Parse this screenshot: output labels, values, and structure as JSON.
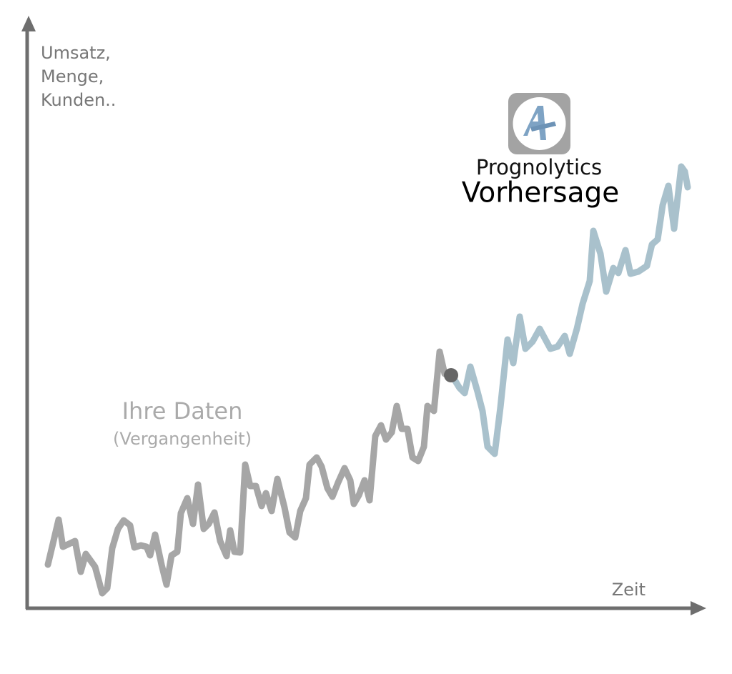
{
  "chart_data": {
    "type": "line",
    "ylabel": [
      "Umsatz,",
      "Menge,",
      "Kunden.."
    ],
    "xlabel": "Zeit",
    "annotations": {
      "history_title": "Ihre Daten",
      "history_subtitle": "(Vergangenheit)",
      "brand": "Prognolytics",
      "forecast_title": "Vorhersage"
    },
    "xlim": [
      0,
      95
    ],
    "ylim": [
      0,
      82
    ],
    "series": [
      {
        "color": "#a6a6a6",
        "x": [
          2.9,
          4.4,
          5,
          6.7,
          7.5,
          8.2,
          9.5,
          10.5,
          11.2,
          11.9,
          12.7,
          13.5,
          14.4,
          15,
          15.9,
          16.7,
          17.2,
          17.9,
          18.8,
          19.5,
          20.2,
          21,
          21.5,
          22.4,
          23.2,
          23.9,
          24.7,
          25.4,
          26.2,
          27,
          27.9,
          28.4,
          29,
          29.8,
          30.5,
          31.2,
          32,
          32.8,
          33.4,
          34.2,
          35,
          36,
          36.7,
          37.5,
          38.2,
          39,
          39.5,
          40.5,
          41.2,
          42,
          42.7,
          43.5,
          44.4,
          45.2,
          45.7,
          46.4,
          47.2,
          47.9,
          48.7,
          49.5,
          50.2,
          51,
          51.7,
          52.4,
          53.2,
          53.9,
          54.7,
          55.5,
          56,
          56.9,
          57.7,
          58.4
        ],
        "values": [
          6.1,
          12.4,
          8.6,
          9.4,
          5.1,
          7.6,
          5.8,
          2.1,
          2.8,
          8.4,
          11.1,
          12.3,
          11.6,
          8.5,
          8.8,
          8.6,
          7.4,
          10.3,
          6.1,
          3.3,
          7.4,
          7.9,
          13.3,
          15.4,
          11.8,
          17.3,
          11.1,
          11.8,
          13.4,
          9.4,
          7.3,
          10.9,
          7.9,
          7.8,
          20.1,
          17.1,
          17.1,
          14.3,
          16.1,
          13.6,
          18.1,
          14.1,
          10.6,
          9.9,
          13.6,
          15.4,
          20.1,
          21.1,
          19.8,
          16.8,
          15.6,
          17.6,
          19.6,
          17.9,
          14.6,
          15.8,
          17.9,
          15.1,
          24.1,
          25.6,
          23.6,
          24.6,
          28.3,
          25.1,
          25.1,
          21.1,
          20.6,
          22.6,
          28.3,
          27.6,
          35.9,
          32.8
        ]
      },
      {
        "color": "#a9c1cc",
        "x": [
          59.7,
          60.5,
          61.2,
          62,
          63,
          63.7,
          64.4,
          65.4,
          66.2,
          67.2,
          68,
          68.9,
          69.7,
          70.7,
          71.7,
          72.5,
          73.2,
          74.2,
          75.2,
          75.9,
          76.9,
          77.7,
          78.7,
          79.2,
          80.2,
          81,
          82,
          82.7,
          83.7,
          84.4,
          85.5,
          86.7,
          87.4,
          88.2,
          88.9,
          89.7,
          90.5,
          91.5,
          92,
          92.4
        ],
        "values": [
          32.1,
          30.8,
          30.1,
          33.8,
          30.3,
          27.6,
          22.6,
          21.6,
          28.1,
          37.6,
          34.3,
          40.8,
          36.3,
          37.3,
          39.1,
          37.6,
          36.3,
          36.6,
          38.1,
          35.6,
          39.1,
          42.6,
          45.8,
          52.8,
          49.6,
          44.3,
          47.6,
          46.9,
          50.1,
          46.8,
          47.1,
          47.9,
          50.9,
          51.6,
          56.4,
          59.1,
          53.1,
          61.8,
          61.1,
          58.9
        ]
      }
    ],
    "highlight_point": {
      "x": 59.3,
      "y": 32.6,
      "color": "#666666"
    }
  }
}
